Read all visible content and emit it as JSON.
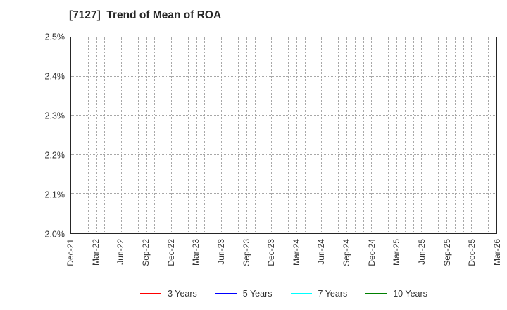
{
  "chart_data": {
    "type": "line",
    "title": "[7127]  Trend of Mean of ROA",
    "x_tick_labels": [
      "Dec-21",
      "Mar-22",
      "Jun-22",
      "Sep-22",
      "Dec-22",
      "Mar-23",
      "Jun-23",
      "Sep-23",
      "Dec-23",
      "Mar-24",
      "Jun-24",
      "Sep-24",
      "Dec-24",
      "Mar-25",
      "Jun-25",
      "Sep-25",
      "Dec-25",
      "Mar-26"
    ],
    "x_minor_gridlines_per_interval": 3,
    "y_tick_labels": [
      "2.0%",
      "2.1%",
      "2.2%",
      "2.3%",
      "2.4%",
      "2.5%"
    ],
    "ylim": [
      2.0,
      2.5
    ],
    "grid": "dotted",
    "legend_position": "bottom-center",
    "plot_area_empty": true,
    "series": [
      {
        "name": "3 Years",
        "color": "#ff0000",
        "values": []
      },
      {
        "name": "5 Years",
        "color": "#0000ff",
        "values": []
      },
      {
        "name": "7 Years",
        "color": "#00ffff",
        "values": []
      },
      {
        "name": "10 Years",
        "color": "#008000",
        "values": []
      }
    ]
  },
  "colors": {
    "grid": "#a8a8a8",
    "plot_border": "#262626",
    "title_text": "#262626",
    "axis_text": "#333333"
  }
}
